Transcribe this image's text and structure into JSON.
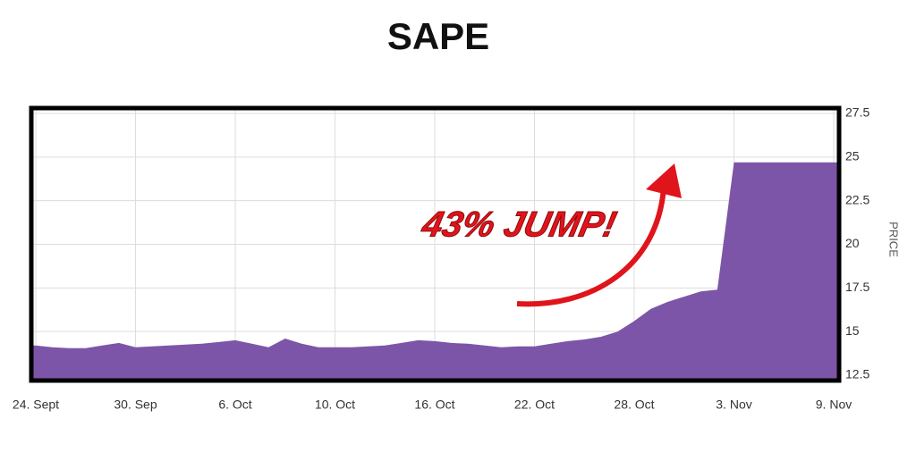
{
  "chart_data": {
    "type": "area",
    "title": "SAPE",
    "y_label": "PRICE",
    "annotation": "43% JUMP!",
    "categories": [
      "24. Sept",
      null,
      null,
      null,
      null,
      null,
      "30. Sep",
      null,
      null,
      null,
      null,
      null,
      "6. Oct",
      null,
      null,
      null,
      null,
      null,
      "10. Oct",
      null,
      null,
      null,
      null,
      null,
      "16. Oct",
      null,
      null,
      null,
      null,
      null,
      "22. Oct",
      null,
      null,
      null,
      null,
      null,
      "28. Oct",
      null,
      null,
      null,
      null,
      null,
      "3. Nov",
      null,
      null,
      null,
      null,
      null,
      "9. Nov"
    ],
    "values": [
      14.2,
      14.1,
      14.05,
      14.05,
      14.2,
      14.35,
      14.1,
      14.15,
      14.2,
      14.25,
      14.3,
      14.4,
      14.5,
      14.3,
      14.1,
      14.6,
      14.3,
      14.1,
      14.1,
      14.1,
      14.15,
      14.2,
      14.35,
      14.5,
      14.45,
      14.35,
      14.3,
      14.2,
      14.1,
      14.15,
      14.15,
      14.3,
      14.45,
      14.55,
      14.7,
      15.0,
      15.6,
      16.3,
      16.7,
      17.0,
      17.3,
      17.4,
      24.7,
      24.7,
      24.7,
      24.7,
      24.7,
      24.7,
      24.7
    ],
    "color": "#7d55a8",
    "ylim": [
      12.5,
      27.5
    ],
    "yticks": [
      12.5,
      15,
      17.5,
      20,
      22.5,
      25,
      27.5
    ],
    "y_axis_side": "right",
    "grid": true
  }
}
